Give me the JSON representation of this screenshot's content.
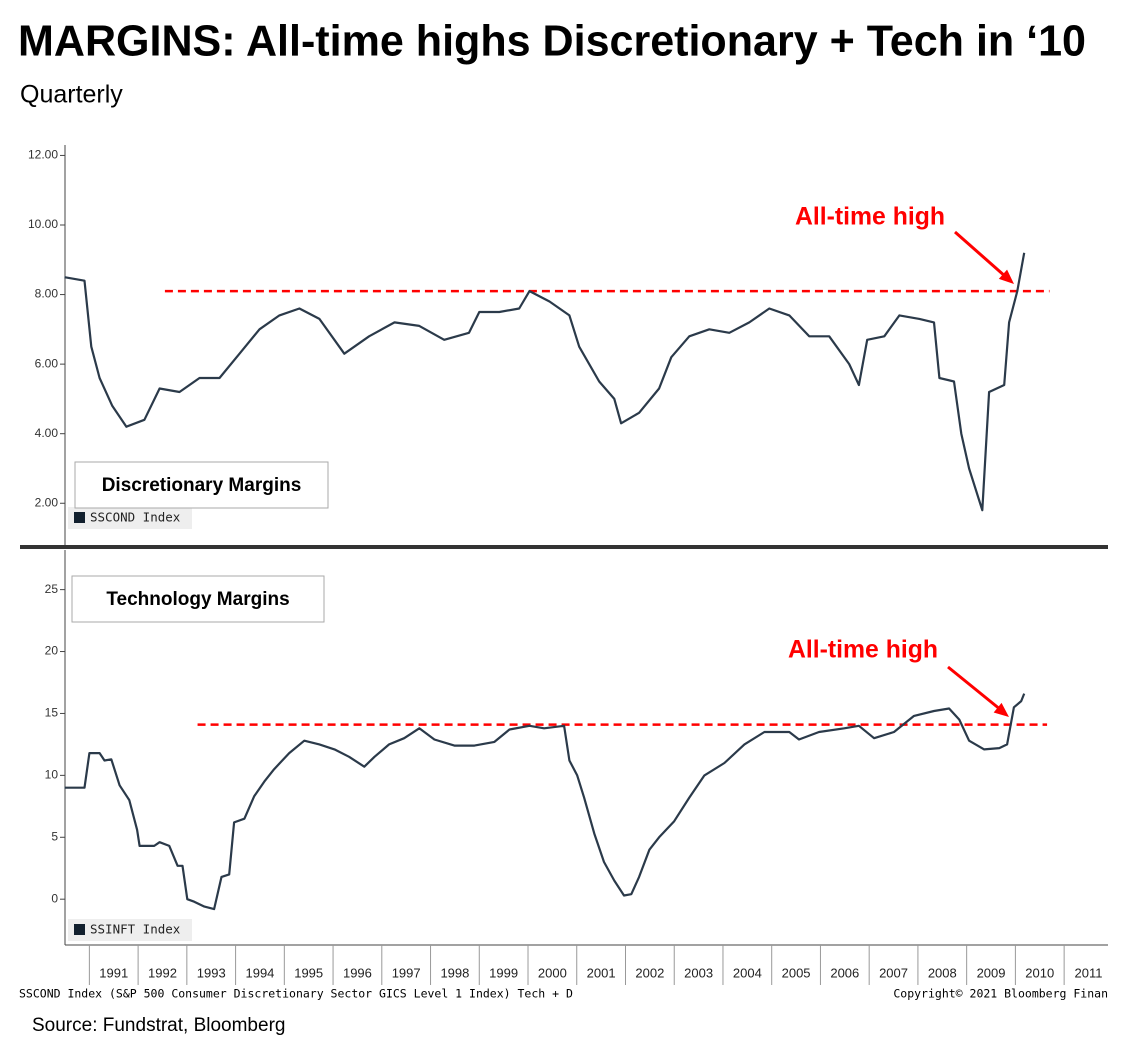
{
  "title": "MARGINS: All-time highs Discretionary + Tech in ‘10",
  "subtitle": "Quarterly",
  "footer_left": "SSCOND Index (S&P 500 Consumer Discretionary Sector GICS Level 1 Index) Tech + D",
  "footer_right": "Copyright© 2021 Bloomberg Finan",
  "source": "Source: Fundstrat, Bloomberg",
  "chart_data": [
    {
      "type": "line",
      "title": "Discretionary Margins",
      "x": [
        1990.49,
        1990.9,
        1991.04,
        1991.21,
        1991.47,
        1991.76,
        1992.13,
        1992.44,
        1992.85,
        1993.26,
        1993.67,
        1994.08,
        1994.49,
        1994.9,
        1995.31,
        1995.72,
        1996.23,
        1996.74,
        1997.26,
        1997.77,
        1998.28,
        1998.79,
        1999.0,
        1999.41,
        1999.82,
        2000.03,
        2000.44,
        2000.85,
        2001.05,
        2001.46,
        2001.77,
        2001.91,
        2002.28,
        2002.69,
        2002.94,
        2003.31,
        2003.72,
        2004.13,
        2004.54,
        2004.95,
        2005.36,
        2005.77,
        2006.18,
        2006.59,
        2006.79,
        2006.96,
        2007.31,
        2007.62,
        2008.03,
        2008.33,
        2008.44,
        2008.74,
        2008.89,
        2009.05,
        2009.32,
        2009.46,
        2009.77,
        2009.87,
        2010.04,
        2010.18
      ],
      "series": [
        {
          "name": "SSCOND Index",
          "color": "#2b3a4a",
          "values": [
            8.5,
            8.4,
            6.5,
            5.6,
            4.8,
            4.2,
            4.4,
            5.3,
            5.2,
            5.6,
            5.6,
            6.3,
            7.0,
            7.4,
            7.6,
            7.3,
            6.3,
            6.8,
            7.2,
            7.1,
            6.7,
            6.9,
            7.5,
            7.5,
            7.6,
            8.1,
            7.8,
            7.4,
            6.5,
            5.5,
            5.0,
            4.3,
            4.6,
            5.3,
            6.2,
            6.8,
            7.0,
            6.9,
            7.2,
            7.6,
            7.4,
            6.8,
            6.8,
            6.0,
            5.4,
            6.7,
            6.8,
            7.4,
            7.3,
            7.2,
            5.6,
            5.5,
            4.0,
            3.0,
            1.8,
            5.2,
            5.4,
            7.2,
            8.1,
            9.2
          ]
        }
      ],
      "xlim": [
        1990.5,
        2011.9
      ],
      "ylim": [
        0.8,
        12.3
      ],
      "yticks": [
        {
          "value": 2,
          "label": "2.00"
        },
        {
          "value": 4,
          "label": "4.00"
        },
        {
          "value": 6,
          "label": "6.00"
        },
        {
          "value": 8,
          "label": "8.00"
        },
        {
          "value": 10,
          "label": "10.00"
        },
        {
          "value": 12,
          "label": "12.00"
        }
      ],
      "reference_line": {
        "value": 8.1,
        "x": [
          1992.55,
          2010.7
        ],
        "color": "#ff0000"
      },
      "annotation": "All-time high"
    },
    {
      "type": "line",
      "title": "Technology Margins",
      "x": [
        1990.49,
        1990.9,
        1991.0,
        1991.21,
        1991.31,
        1991.45,
        1991.62,
        1991.82,
        1991.98,
        1992.03,
        1992.33,
        1992.44,
        1992.64,
        1992.81,
        1992.91,
        1993.01,
        1993.15,
        1993.36,
        1993.56,
        1993.71,
        1993.87,
        1993.97,
        1994.18,
        1994.38,
        1994.59,
        1994.79,
        1995.1,
        1995.41,
        1995.72,
        1996.03,
        1996.33,
        1996.64,
        1996.85,
        1997.15,
        1997.46,
        1997.77,
        1998.08,
        1998.49,
        1998.9,
        1999.31,
        1999.62,
        2000.03,
        2000.33,
        2000.74,
        2000.85,
        2001.01,
        2001.15,
        2001.36,
        2001.56,
        2001.77,
        2001.97,
        2002.12,
        2002.28,
        2002.49,
        2002.69,
        2003.0,
        2003.31,
        2003.62,
        2004.03,
        2004.44,
        2004.85,
        2005.36,
        2005.56,
        2005.97,
        2006.49,
        2006.79,
        2007.1,
        2007.51,
        2007.92,
        2008.33,
        2008.64,
        2008.85,
        2009.05,
        2009.36,
        2009.67,
        2009.83,
        2009.97,
        2010.12,
        2010.18
      ],
      "series": [
        {
          "name": "SSINFT Index",
          "color": "#2b3a4a",
          "values": [
            9.0,
            9.0,
            11.8,
            11.8,
            11.2,
            11.3,
            9.2,
            8.0,
            5.6,
            4.3,
            4.3,
            4.6,
            4.3,
            2.7,
            2.7,
            0,
            -0.2,
            -0.6,
            -0.8,
            1.8,
            2.0,
            6.2,
            6.5,
            8.3,
            9.5,
            10.5,
            11.8,
            12.8,
            12.5,
            12.1,
            11.5,
            10.7,
            11.5,
            12.5,
            13.0,
            13.8,
            12.9,
            12.4,
            12.4,
            12.7,
            13.7,
            14.0,
            13.8,
            14.0,
            11.2,
            10.0,
            8.2,
            5.3,
            3.0,
            1.5,
            0.3,
            0.4,
            1.8,
            4.0,
            5.0,
            6.3,
            8.2,
            10.0,
            11.0,
            12.5,
            13.5,
            13.5,
            12.9,
            13.5,
            13.8,
            14.0,
            13.0,
            13.5,
            14.8,
            15.2,
            15.4,
            14.5,
            12.8,
            12.1,
            12.2,
            12.5,
            15.5,
            16.0,
            16.6
          ]
        }
      ],
      "xlim": [
        1990.5,
        2011.9
      ],
      "ylim": [
        -3.7,
        28.2
      ],
      "yticks": [
        0,
        5,
        10,
        15,
        20,
        25
      ],
      "xticks": [
        1991,
        1992,
        1993,
        1994,
        1995,
        1996,
        1997,
        1998,
        1999,
        2000,
        2001,
        2002,
        2003,
        2004,
        2005,
        2006,
        2007,
        2008,
        2009,
        2010,
        2011
      ],
      "reference_line": {
        "value": 14.1,
        "x": [
          1993.22,
          2010.65
        ],
        "color": "#ff0000"
      },
      "annotation": "All-time high"
    }
  ]
}
